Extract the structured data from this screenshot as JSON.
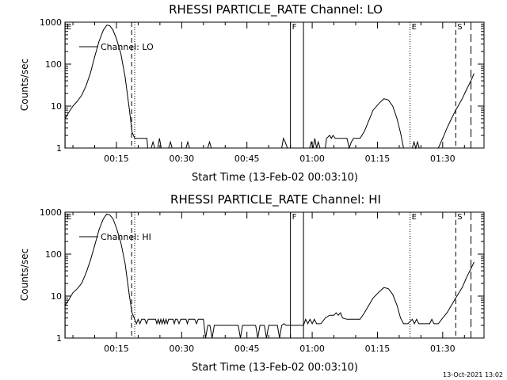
{
  "chart_data": [
    {
      "type": "line",
      "title": "RHESSI PARTICLE_RATE Channel: LO",
      "xlabel": "Start Time (13-Feb-02 00:03:10)",
      "ylabel": "Counts/sec",
      "y_scale": "log",
      "ylim": [
        1,
        1000
      ],
      "xlim_minutes": [
        3.17,
        99.5
      ],
      "y_ticks": [
        {
          "v": 1,
          "label": "1"
        },
        {
          "v": 10,
          "label": "10"
        },
        {
          "v": 100,
          "label": "100"
        },
        {
          "v": 1000,
          "label": "1000"
        }
      ],
      "x_ticks": [
        {
          "v": 15,
          "label": "00:15"
        },
        {
          "v": 30,
          "label": "00:30"
        },
        {
          "v": 45,
          "label": "00:45"
        },
        {
          "v": 60,
          "label": "01:00"
        },
        {
          "v": 75,
          "label": "01:15"
        },
        {
          "v": 90,
          "label": "01:30"
        }
      ],
      "legend": {
        "position": "top-left",
        "label": "Channel: LO"
      },
      "markers": [
        {
          "x": 3.2,
          "style": "solid",
          "label": "E"
        },
        {
          "x": 18.5,
          "style": "dashed",
          "label": ""
        },
        {
          "x": 19.2,
          "style": "dotted",
          "label": ""
        },
        {
          "x": 55.0,
          "style": "solid",
          "label": "F"
        },
        {
          "x": 58.0,
          "style": "solid",
          "label": ""
        },
        {
          "x": 82.5,
          "style": "dotted",
          "label": "E"
        },
        {
          "x": 93.0,
          "style": "dashed",
          "label": "S"
        },
        {
          "x": 96.5,
          "style": "longdash",
          "label": ""
        }
      ],
      "series": [
        {
          "name": "Channel: LO",
          "points": [
            [
              3.2,
              5
            ],
            [
              4,
              7
            ],
            [
              5,
              10
            ],
            [
              6,
              13
            ],
            [
              7,
              18
            ],
            [
              8,
              30
            ],
            [
              9,
              60
            ],
            [
              10,
              150
            ],
            [
              11,
              350
            ],
            [
              12,
              650
            ],
            [
              12.8,
              850
            ],
            [
              13.5,
              820
            ],
            [
              14.2,
              650
            ],
            [
              15,
              400
            ],
            [
              16,
              180
            ],
            [
              17,
              50
            ],
            [
              18,
              8
            ],
            [
              18.6,
              2.4
            ],
            [
              19.2,
              1.7
            ],
            [
              20,
              1.7
            ],
            [
              22,
              1.7
            ],
            [
              22.2,
              1
            ],
            [
              23,
              1
            ],
            [
              23.4,
              1.4
            ],
            [
              23.8,
              1
            ],
            [
              24.5,
              1
            ],
            [
              24.9,
              1.7
            ],
            [
              25.3,
              1
            ],
            [
              27,
              1
            ],
            [
              27.4,
              1.4
            ],
            [
              27.8,
              1
            ],
            [
              31,
              1
            ],
            [
              31.4,
              1.4
            ],
            [
              31.8,
              1
            ],
            [
              36,
              1
            ],
            [
              36.4,
              1.4
            ],
            [
              36.8,
              1
            ],
            [
              53,
              1
            ],
            [
              53.4,
              1.7
            ],
            [
              53.8,
              1.4
            ],
            [
              54.3,
              1
            ],
            [
              55,
              1
            ],
            [
              58,
              1
            ],
            [
              59.4,
              1
            ],
            [
              59.8,
              1.4
            ],
            [
              60.2,
              1
            ],
            [
              60.6,
              1.7
            ],
            [
              61,
              1
            ],
            [
              61.4,
              1.4
            ],
            [
              61.8,
              1
            ],
            [
              63,
              1
            ],
            [
              63.3,
              1.7
            ],
            [
              64,
              2
            ],
            [
              64.4,
              1.7
            ],
            [
              64.8,
              2
            ],
            [
              65.3,
              1.7
            ],
            [
              66,
              1.7
            ],
            [
              68,
              1.7
            ],
            [
              68.5,
              1
            ],
            [
              69,
              1.4
            ],
            [
              69.5,
              1.7
            ],
            [
              71,
              1.7
            ],
            [
              72,
              2.5
            ],
            [
              73,
              4.5
            ],
            [
              74,
              8
            ],
            [
              75.5,
              12
            ],
            [
              76.5,
              15
            ],
            [
              77.5,
              14
            ],
            [
              78.5,
              10
            ],
            [
              79.5,
              5
            ],
            [
              80.3,
              2.3
            ],
            [
              81,
              1
            ],
            [
              83,
              1
            ],
            [
              83.4,
              1.4
            ],
            [
              83.8,
              1
            ],
            [
              84.2,
              1.4
            ],
            [
              84.6,
              1
            ],
            [
              89,
              1
            ],
            [
              90,
              1.7
            ],
            [
              91,
              3
            ],
            [
              92,
              5
            ],
            [
              93,
              8
            ],
            [
              94.5,
              15
            ],
            [
              95.5,
              25
            ],
            [
              96.5,
              40
            ],
            [
              97.2,
              60
            ]
          ]
        }
      ]
    },
    {
      "type": "line",
      "title": "RHESSI PARTICLE_RATE Channel: HI",
      "xlabel": "Start Time (13-Feb-02 00:03:10)",
      "ylabel": "Counts/sec",
      "y_scale": "log",
      "ylim": [
        1,
        1000
      ],
      "xlim_minutes": [
        3.17,
        99.5
      ],
      "y_ticks": [
        {
          "v": 1,
          "label": "1"
        },
        {
          "v": 10,
          "label": "10"
        },
        {
          "v": 100,
          "label": "100"
        },
        {
          "v": 1000,
          "label": "1000"
        }
      ],
      "x_ticks": [
        {
          "v": 15,
          "label": "00:15"
        },
        {
          "v": 30,
          "label": "00:30"
        },
        {
          "v": 45,
          "label": "00:45"
        },
        {
          "v": 60,
          "label": "01:00"
        },
        {
          "v": 75,
          "label": "01:15"
        },
        {
          "v": 90,
          "label": "01:30"
        }
      ],
      "legend": {
        "position": "top-left",
        "label": "Channel: HI"
      },
      "markers": [
        {
          "x": 3.2,
          "style": "solid",
          "label": "E"
        },
        {
          "x": 18.5,
          "style": "dashed",
          "label": ""
        },
        {
          "x": 19.2,
          "style": "dotted",
          "label": ""
        },
        {
          "x": 55.0,
          "style": "solid",
          "label": "F"
        },
        {
          "x": 58.0,
          "style": "solid",
          "label": ""
        },
        {
          "x": 82.5,
          "style": "dotted",
          "label": "E"
        },
        {
          "x": 93.0,
          "style": "dashed",
          "label": "S"
        },
        {
          "x": 96.5,
          "style": "longdash",
          "label": ""
        }
      ],
      "series": [
        {
          "name": "Channel: HI",
          "points": [
            [
              3.2,
              6
            ],
            [
              4,
              8
            ],
            [
              5,
              12
            ],
            [
              6,
              15
            ],
            [
              7,
              20
            ],
            [
              8,
              35
            ],
            [
              9,
              70
            ],
            [
              10,
              160
            ],
            [
              11,
              380
            ],
            [
              12,
              700
            ],
            [
              12.8,
              900
            ],
            [
              13.5,
              850
            ],
            [
              14.2,
              700
            ],
            [
              15,
              420
            ],
            [
              16,
              190
            ],
            [
              17,
              60
            ],
            [
              18,
              10
            ],
            [
              18.6,
              4
            ],
            [
              19.2,
              2.8
            ],
            [
              19.6,
              2.2
            ],
            [
              20,
              2.8
            ],
            [
              20.4,
              2.2
            ],
            [
              20.8,
              2.8
            ],
            [
              21.5,
              2.8
            ],
            [
              21.9,
              2.2
            ],
            [
              22.3,
              2.8
            ],
            [
              23,
              2.8
            ],
            [
              24,
              2.8
            ],
            [
              24.3,
              2.2
            ],
            [
              24.6,
              2.8
            ],
            [
              24.9,
              2.2
            ],
            [
              25.2,
              2.8
            ],
            [
              25.5,
              2.2
            ],
            [
              25.8,
              2.8
            ],
            [
              26.1,
              2.2
            ],
            [
              26.4,
              2.8
            ],
            [
              26.7,
              2.2
            ],
            [
              27,
              2.8
            ],
            [
              28,
              2.8
            ],
            [
              28.3,
              2.2
            ],
            [
              28.6,
              2.8
            ],
            [
              29,
              2.8
            ],
            [
              29.4,
              2.2
            ],
            [
              29.8,
              2.8
            ],
            [
              31,
              2.8
            ],
            [
              31.3,
              2.2
            ],
            [
              31.6,
              2.8
            ],
            [
              33,
              2.8
            ],
            [
              33.4,
              2.2
            ],
            [
              33.8,
              2.8
            ],
            [
              35,
              2.8
            ],
            [
              35.5,
              1
            ],
            [
              36,
              2
            ],
            [
              36.5,
              2
            ],
            [
              37,
              1
            ],
            [
              37.5,
              2
            ],
            [
              43,
              2
            ],
            [
              43.5,
              1
            ],
            [
              44,
              2
            ],
            [
              47,
              2
            ],
            [
              47.5,
              1
            ],
            [
              48,
              2
            ],
            [
              49,
              2
            ],
            [
              49.5,
              1
            ],
            [
              50,
              2
            ],
            [
              52,
              2
            ],
            [
              52.5,
              1
            ],
            [
              53,
              2
            ],
            [
              53.5,
              2.2
            ],
            [
              54,
              2
            ],
            [
              58,
              2
            ],
            [
              58.5,
              2.8
            ],
            [
              59,
              2.2
            ],
            [
              59.5,
              2.8
            ],
            [
              60,
              2.2
            ],
            [
              60.5,
              2.8
            ],
            [
              61,
              2.2
            ],
            [
              62,
              2.2
            ],
            [
              63,
              3
            ],
            [
              64,
              3.5
            ],
            [
              65,
              3.5
            ],
            [
              65.5,
              4
            ],
            [
              66,
              3.5
            ],
            [
              66.5,
              4
            ],
            [
              67,
              3
            ],
            [
              68,
              2.8
            ],
            [
              71,
              2.8
            ],
            [
              72,
              4
            ],
            [
              73,
              6
            ],
            [
              74,
              9
            ],
            [
              75.5,
              13
            ],
            [
              76.5,
              16
            ],
            [
              77.5,
              15
            ],
            [
              78.5,
              11
            ],
            [
              79.5,
              6
            ],
            [
              80.3,
              3
            ],
            [
              81,
              2.2
            ],
            [
              82,
              2.2
            ],
            [
              83,
              2.8
            ],
            [
              83.5,
              2.2
            ],
            [
              84,
              2.8
            ],
            [
              84.5,
              2.2
            ],
            [
              85,
              2.2
            ],
            [
              86,
              2.2
            ],
            [
              87,
              2.2
            ],
            [
              87.5,
              2.8
            ],
            [
              88,
              2.2
            ],
            [
              89,
              2.2
            ],
            [
              90,
              3
            ],
            [
              91,
              4
            ],
            [
              92,
              6
            ],
            [
              93,
              9
            ],
            [
              94.5,
              16
            ],
            [
              95.5,
              28
            ],
            [
              96.5,
              45
            ],
            [
              97.2,
              65
            ]
          ]
        }
      ]
    }
  ],
  "footer": {
    "date_stamp": "13-Oct-2021 13:02"
  }
}
